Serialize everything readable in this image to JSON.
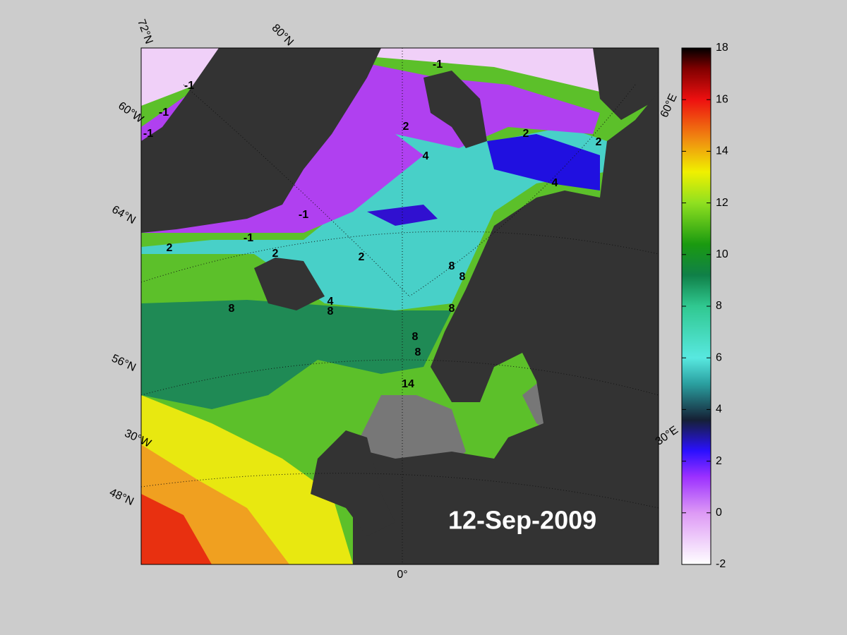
{
  "map": {
    "date": "12-Sep-2009",
    "graticule_labels": [
      "72°N",
      "80°N",
      "60°W",
      "64°N",
      "56°N",
      "30°W",
      "48°N",
      "0°",
      "60°E",
      "30°E"
    ],
    "contour_labels": [
      "-1",
      "-1",
      "-1",
      "-1",
      "-1",
      "-1",
      "2",
      "2",
      "2",
      "2",
      "2",
      "2",
      "4",
      "4",
      "4",
      "8",
      "8",
      "8",
      "8",
      "8",
      "8",
      "8",
      "14"
    ]
  },
  "colorbar": {
    "ticks": [
      18,
      16,
      14,
      12,
      10,
      8,
      6,
      4,
      2,
      0,
      -2
    ]
  }
}
